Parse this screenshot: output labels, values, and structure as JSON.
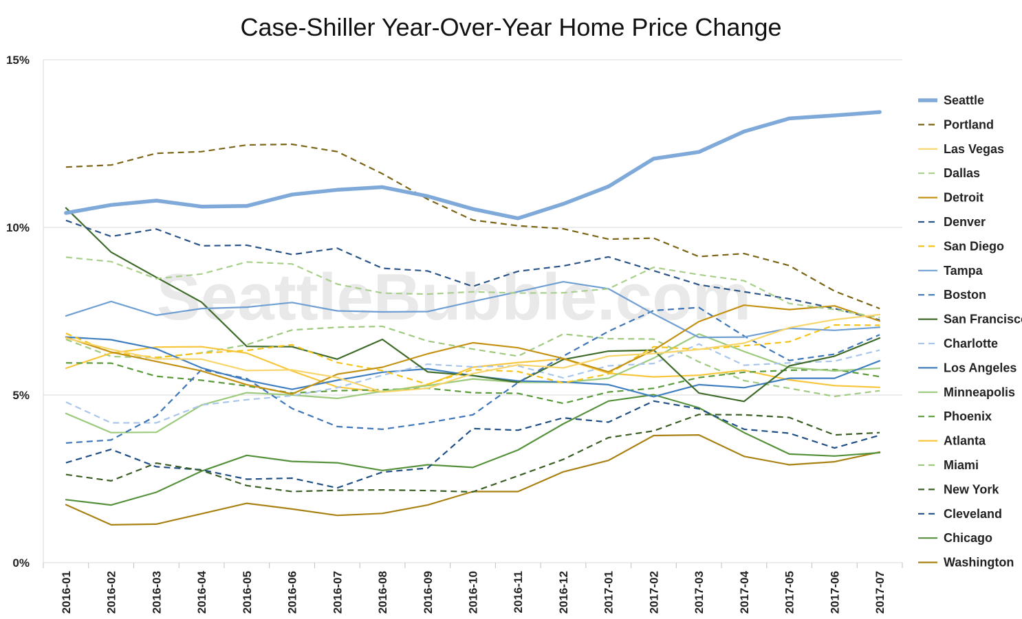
{
  "chart_data": {
    "type": "line",
    "title": "Case-Shiller Year-Over-Year Home Price Change",
    "watermark": "SeattleBubble.com",
    "xlabel": "",
    "ylabel": "",
    "ylim": [
      0,
      15
    ],
    "yticks": [
      0,
      5,
      10,
      15
    ],
    "yticklabels": [
      "0%",
      "5%",
      "10%",
      "15%"
    ],
    "grid": true,
    "legend_position": "right",
    "categories": [
      "2016-01",
      "2016-02",
      "2016-03",
      "2016-04",
      "2016-05",
      "2016-06",
      "2016-07",
      "2016-08",
      "2016-09",
      "2016-10",
      "2016-11",
      "2016-12",
      "2017-01",
      "2017-02",
      "2017-03",
      "2017-04",
      "2017-05",
      "2017-06",
      "2017-07"
    ],
    "series": [
      {
        "name": "Seattle",
        "color": "#7ea9d9",
        "dashed": false,
        "width": 5.5,
        "values": [
          10.43,
          10.67,
          10.8,
          10.62,
          10.64,
          10.98,
          11.12,
          11.2,
          10.93,
          10.55,
          10.27,
          10.7,
          11.22,
          12.05,
          12.25,
          12.86,
          13.25,
          13.34,
          13.44
        ]
      },
      {
        "name": "Portland",
        "color": "#7a6415",
        "dashed": true,
        "width": 2.2,
        "values": [
          11.8,
          11.86,
          12.21,
          12.26,
          12.46,
          12.48,
          12.26,
          11.6,
          10.84,
          10.22,
          10.05,
          9.96,
          9.65,
          9.68,
          9.13,
          9.22,
          8.86,
          8.1,
          7.58
        ]
      },
      {
        "name": "Las Vegas",
        "color": "#f7d56a",
        "dashed": false,
        "width": 2.2,
        "values": [
          6.7,
          6.36,
          6.08,
          6.07,
          5.73,
          5.75,
          5.52,
          5.09,
          5.2,
          5.64,
          5.9,
          5.81,
          6.16,
          6.24,
          6.36,
          6.55,
          7.01,
          7.25,
          7.4
        ]
      },
      {
        "name": "Dallas",
        "color": "#a8cf8a",
        "dashed": true,
        "width": 2.2,
        "values": [
          9.11,
          8.98,
          8.47,
          8.61,
          8.97,
          8.91,
          8.31,
          8.04,
          8.01,
          8.08,
          8.04,
          8.05,
          8.17,
          8.81,
          8.59,
          8.41,
          7.73,
          7.55,
          7.31
        ]
      },
      {
        "name": "Detroit",
        "color": "#c39213",
        "dashed": false,
        "width": 2.2,
        "values": [
          6.72,
          6.28,
          6.0,
          5.72,
          5.31,
          5.03,
          5.62,
          5.83,
          6.23,
          6.56,
          6.41,
          6.09,
          5.69,
          6.34,
          7.19,
          7.68,
          7.55,
          7.66,
          7.21
        ]
      },
      {
        "name": "Denver",
        "color": "#2a5488",
        "dashed": true,
        "width": 2.2,
        "values": [
          10.21,
          9.73,
          9.95,
          9.45,
          9.47,
          9.19,
          9.38,
          8.78,
          8.7,
          8.24,
          8.69,
          8.85,
          9.12,
          8.71,
          8.29,
          8.08,
          7.87,
          7.58,
          7.24
        ]
      },
      {
        "name": "San Diego",
        "color": "#f5c218",
        "dashed": true,
        "width": 2.2,
        "values": [
          6.84,
          6.27,
          6.12,
          6.25,
          6.33,
          6.5,
          5.97,
          5.73,
          5.32,
          5.76,
          5.7,
          5.36,
          5.63,
          6.44,
          6.36,
          6.47,
          6.59,
          7.09,
          7.08
        ]
      },
      {
        "name": "Tampa",
        "color": "#6f9ed2",
        "dashed": false,
        "width": 2.2,
        "values": [
          7.36,
          7.79,
          7.38,
          7.58,
          7.62,
          7.76,
          7.51,
          7.48,
          7.49,
          7.79,
          8.08,
          8.38,
          8.17,
          7.42,
          6.72,
          6.73,
          6.99,
          6.93,
          7.02
        ]
      },
      {
        "name": "Boston",
        "color": "#3d75b8",
        "dashed": true,
        "width": 2.2,
        "values": [
          3.57,
          3.66,
          4.38,
          5.76,
          5.49,
          4.6,
          4.06,
          3.98,
          4.17,
          4.41,
          5.37,
          6.16,
          6.9,
          7.52,
          7.61,
          6.76,
          6.03,
          6.22,
          6.8
        ]
      },
      {
        "name": "San Francisco",
        "color": "#3f6b2a",
        "dashed": false,
        "width": 2.2,
        "values": [
          10.58,
          9.26,
          8.51,
          7.77,
          6.45,
          6.44,
          6.07,
          6.66,
          5.69,
          5.58,
          5.38,
          6.06,
          6.31,
          6.34,
          5.06,
          4.81,
          5.87,
          6.16,
          6.7
        ]
      },
      {
        "name": "Charlotte",
        "color": "#a9c6ea",
        "dashed": true,
        "width": 2.2,
        "values": [
          4.79,
          4.17,
          4.17,
          4.7,
          4.86,
          4.98,
          5.22,
          5.59,
          5.92,
          5.84,
          5.87,
          5.51,
          5.87,
          5.94,
          6.52,
          5.89,
          5.96,
          6.01,
          6.34
        ]
      },
      {
        "name": "Los Angeles",
        "color": "#3f7fc0",
        "dashed": false,
        "width": 2.2,
        "values": [
          6.73,
          6.65,
          6.38,
          5.81,
          5.44,
          5.17,
          5.44,
          5.68,
          5.78,
          5.58,
          5.42,
          5.39,
          5.31,
          4.95,
          5.31,
          5.22,
          5.5,
          5.5,
          6.02
        ]
      },
      {
        "name": "Minneapolis",
        "color": "#9bca7d",
        "dashed": false,
        "width": 2.2,
        "values": [
          4.45,
          3.88,
          3.89,
          4.7,
          5.07,
          5.0,
          4.9,
          5.11,
          5.28,
          5.48,
          5.38,
          5.38,
          5.5,
          6.1,
          6.82,
          6.3,
          5.82,
          5.72,
          5.8
        ]
      },
      {
        "name": "Phoenix",
        "color": "#5a9a3a",
        "dashed": true,
        "width": 2.2,
        "values": [
          5.96,
          5.95,
          5.56,
          5.44,
          5.27,
          5.06,
          5.13,
          5.16,
          5.2,
          5.07,
          5.05,
          4.75,
          5.09,
          5.2,
          5.52,
          5.68,
          5.74,
          5.76,
          5.55
        ]
      },
      {
        "name": "Atlanta",
        "color": "#f7c63b",
        "dashed": false,
        "width": 2.2,
        "values": [
          5.8,
          6.25,
          6.43,
          6.44,
          6.25,
          5.72,
          5.24,
          5.09,
          5.31,
          5.83,
          5.97,
          6.08,
          5.65,
          5.54,
          5.59,
          5.74,
          5.45,
          5.28,
          5.23
        ]
      },
      {
        "name": "Miami",
        "color": "#9ec97f",
        "dashed": true,
        "width": 2.2,
        "values": [
          6.66,
          6.15,
          6.11,
          6.26,
          6.5,
          6.94,
          7.02,
          7.05,
          6.61,
          6.37,
          6.16,
          6.82,
          6.68,
          6.67,
          5.99,
          5.43,
          5.2,
          4.96,
          5.13
        ]
      },
      {
        "name": "New York",
        "color": "#3a5e24",
        "dashed": true,
        "width": 2.2,
        "values": [
          2.63,
          2.44,
          2.97,
          2.75,
          2.3,
          2.12,
          2.16,
          2.17,
          2.15,
          2.11,
          2.59,
          3.08,
          3.73,
          3.93,
          4.42,
          4.41,
          4.33,
          3.81,
          3.88
        ]
      },
      {
        "name": "Cleveland",
        "color": "#1f4f84",
        "dashed": true,
        "width": 2.2,
        "values": [
          2.98,
          3.38,
          2.86,
          2.77,
          2.49,
          2.52,
          2.23,
          2.7,
          2.82,
          4.0,
          3.95,
          4.32,
          4.19,
          4.82,
          4.59,
          3.98,
          3.86,
          3.42,
          3.8
        ]
      },
      {
        "name": "Chicago",
        "color": "#55913a",
        "dashed": false,
        "width": 2.2,
        "values": [
          1.88,
          1.72,
          2.1,
          2.73,
          3.2,
          3.02,
          2.98,
          2.75,
          2.92,
          2.84,
          3.36,
          4.14,
          4.82,
          5.01,
          4.62,
          3.88,
          3.24,
          3.18,
          3.28
        ]
      },
      {
        "name": "Washington",
        "color": "#a88112",
        "dashed": false,
        "width": 2.2,
        "values": [
          1.73,
          1.13,
          1.15,
          1.46,
          1.77,
          1.6,
          1.41,
          1.47,
          1.72,
          2.12,
          2.12,
          2.71,
          3.05,
          3.79,
          3.81,
          3.17,
          2.92,
          3.01,
          3.3
        ]
      }
    ]
  }
}
